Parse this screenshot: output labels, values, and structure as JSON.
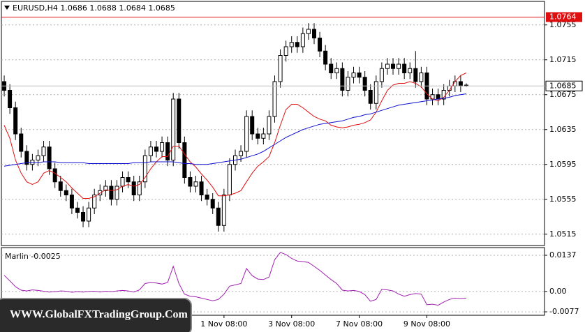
{
  "chart_data": [
    {
      "type": "candlestick",
      "title": "EURUSD,H4  1.0686 1.0688 1.0684 1.0685",
      "watermark": "WWW.GlobalFXTradingGroup.Com",
      "categories": [
        null,
        null,
        null,
        null,
        null,
        null,
        null,
        null,
        null,
        null,
        null,
        null,
        null,
        null,
        null,
        null,
        null,
        null,
        null,
        null,
        null,
        null,
        null,
        null,
        null,
        null,
        null,
        null,
        null,
        null,
        null,
        null,
        null,
        null,
        null,
        null,
        null,
        null,
        null,
        "1 Nov 08:00",
        null,
        null,
        null,
        null,
        null,
        null,
        null,
        null,
        null,
        null,
        null,
        "3 Nov 08:00",
        null,
        null,
        null,
        null,
        null,
        null,
        null,
        null,
        null,
        null,
        null,
        "7 Nov 08:00",
        null,
        null,
        null,
        null,
        null,
        null,
        null,
        null,
        null,
        null,
        null,
        "9 Nov 08:00",
        null,
        null,
        null,
        null,
        null,
        null,
        null
      ],
      "open": [
        1.069,
        1.068,
        1.066,
        1.063,
        1.061,
        1.0595,
        1.06,
        1.0605,
        1.0615,
        1.059,
        1.0575,
        1.0565,
        1.056,
        1.0545,
        1.054,
        1.053,
        1.0545,
        1.056,
        1.0565,
        1.057,
        1.0555,
        1.057,
        1.058,
        1.0575,
        1.056,
        1.0575,
        1.0605,
        1.0615,
        1.061,
        1.062,
        1.06,
        1.067,
        1.062,
        1.058,
        1.057,
        1.0575,
        1.056,
        1.0555,
        1.0545,
        1.0525,
        1.056,
        1.0595,
        1.0605,
        1.061,
        1.065,
        1.063,
        1.0625,
        1.063,
        1.065,
        1.069,
        1.072,
        1.073,
        1.0735,
        1.073,
        1.0745,
        1.075,
        1.074,
        1.0725,
        1.071,
        1.07,
        1.0705,
        1.068,
        1.0695,
        1.07,
        1.0695,
        1.068,
        1.0665,
        1.069,
        1.0705,
        1.071,
        1.0705,
        1.071,
        1.07,
        1.0705,
        1.069,
        1.07,
        1.067,
        1.0675,
        1.067,
        1.068,
        1.0685,
        1.069,
        1.0686
      ],
      "high": [
        1.0697,
        1.0687,
        1.0667,
        1.0637,
        1.0617,
        1.0607,
        1.0612,
        1.0622,
        1.0622,
        1.0597,
        1.0582,
        1.0572,
        1.0567,
        1.0552,
        1.0547,
        1.0552,
        1.0567,
        1.0572,
        1.0577,
        1.0577,
        1.0577,
        1.0587,
        1.0587,
        1.0582,
        1.0582,
        1.0612,
        1.0622,
        1.0622,
        1.0627,
        1.0627,
        1.0677,
        1.0677,
        1.0627,
        1.0587,
        1.0582,
        1.0582,
        1.0567,
        1.0562,
        1.0552,
        1.0567,
        1.0602,
        1.0612,
        1.0617,
        1.0657,
        1.0657,
        1.0637,
        1.0637,
        1.0657,
        1.0697,
        1.0727,
        1.0737,
        1.0742,
        1.0742,
        1.0752,
        1.0757,
        1.0757,
        1.0747,
        1.0732,
        1.0717,
        1.0712,
        1.0712,
        1.0702,
        1.0707,
        1.0707,
        1.0702,
        1.0687,
        1.0697,
        1.0712,
        1.0717,
        1.0717,
        1.0717,
        1.0717,
        1.0712,
        1.0725,
        1.0707,
        1.0707,
        1.0682,
        1.0682,
        1.0687,
        1.0692,
        1.0697,
        1.0697,
        1.0688
      ],
      "low": [
        1.0673,
        1.0653,
        1.0623,
        1.0603,
        1.0588,
        1.0588,
        1.0593,
        1.0598,
        1.0583,
        1.0568,
        1.0558,
        1.0553,
        1.0538,
        1.0533,
        1.0523,
        1.0523,
        1.0538,
        1.0553,
        1.0558,
        1.0548,
        1.0548,
        1.0563,
        1.0568,
        1.0553,
        1.0553,
        1.0568,
        1.0598,
        1.0603,
        1.0603,
        1.0593,
        1.0593,
        1.0613,
        1.0573,
        1.0563,
        1.0563,
        1.0553,
        1.0548,
        1.0538,
        1.0518,
        1.0518,
        1.0553,
        1.0588,
        1.0598,
        1.0603,
        1.0623,
        1.0618,
        1.0618,
        1.0623,
        1.0643,
        1.0683,
        1.0713,
        1.0723,
        1.0723,
        1.0723,
        1.0738,
        1.0733,
        1.0718,
        1.0703,
        1.0693,
        1.0693,
        1.0673,
        1.0673,
        1.0688,
        1.0688,
        1.0673,
        1.0658,
        1.0658,
        1.0683,
        1.0698,
        1.0698,
        1.0698,
        1.0693,
        1.0693,
        1.0683,
        1.0683,
        1.0663,
        1.0663,
        1.0663,
        1.0663,
        1.0673,
        1.0678,
        1.0678,
        1.0684
      ],
      "close": [
        1.068,
        1.066,
        1.063,
        1.061,
        1.0595,
        1.06,
        1.0605,
        1.0615,
        1.059,
        1.0575,
        1.0565,
        1.056,
        1.0545,
        1.054,
        1.053,
        1.0545,
        1.056,
        1.0565,
        1.057,
        1.0555,
        1.057,
        1.058,
        1.0575,
        1.056,
        1.0575,
        1.0605,
        1.0615,
        1.061,
        1.062,
        1.06,
        1.067,
        1.062,
        1.058,
        1.057,
        1.0575,
        1.056,
        1.0555,
        1.0545,
        1.0525,
        1.056,
        1.0595,
        1.0605,
        1.061,
        1.065,
        1.063,
        1.0625,
        1.063,
        1.065,
        1.069,
        1.072,
        1.073,
        1.0735,
        1.073,
        1.0745,
        1.075,
        1.074,
        1.0725,
        1.071,
        1.07,
        1.0705,
        1.068,
        1.0695,
        1.07,
        1.0695,
        1.068,
        1.0665,
        1.069,
        1.0705,
        1.071,
        1.0705,
        1.071,
        1.07,
        1.0705,
        1.069,
        1.07,
        1.067,
        1.0675,
        1.067,
        1.068,
        1.0685,
        1.069,
        1.0685,
        1.0685
      ],
      "up_color": "#ffffff",
      "down_color": "#000000",
      "series": [
        {
          "color": "#e01010",
          "values": [
            1.064,
            1.0625,
            1.06,
            1.0585,
            1.0575,
            1.0572,
            1.0575,
            1.0585,
            1.0588,
            1.0585,
            1.058,
            1.0575,
            1.0568,
            1.0562,
            1.0556,
            1.0556,
            1.0558,
            1.0562,
            1.0566,
            1.0565,
            1.0566,
            1.057,
            1.0572,
            1.057,
            1.0572,
            1.058,
            1.059,
            1.0598,
            1.0604,
            1.0604,
            1.0616,
            1.0616,
            1.0607,
            1.0598,
            1.0592,
            1.0584,
            1.0577,
            1.0569,
            1.0559,
            1.0559,
            1.056,
            1.0562,
            1.0565,
            1.0575,
            1.0585,
            1.0593,
            1.0598,
            1.0604,
            1.062,
            1.064,
            1.0658,
            1.0664,
            1.0664,
            1.066,
            1.0655,
            1.065,
            1.0647,
            1.0645,
            1.064,
            1.0638,
            1.0637,
            1.0638,
            1.064,
            1.0641,
            1.0643,
            1.0646,
            1.0655,
            1.0668,
            1.068,
            1.0686,
            1.0688,
            1.0688,
            1.069,
            1.0688,
            1.0684,
            1.0676,
            1.067,
            1.0668,
            1.0672,
            1.068,
            1.069,
            1.0697,
            1.07
          ]
        },
        {
          "color": "#1010d0",
          "values": [
            1.0593,
            1.0594,
            1.0595,
            1.0596,
            1.0597,
            1.0597,
            1.0597,
            1.0598,
            1.0598,
            1.0598,
            1.0597,
            1.0597,
            1.0597,
            1.0597,
            1.0597,
            1.0596,
            1.0596,
            1.0596,
            1.0596,
            1.0596,
            1.0596,
            1.0596,
            1.0596,
            1.0597,
            1.0597,
            1.0597,
            1.0598,
            1.0598,
            1.0598,
            1.0598,
            1.0598,
            1.0597,
            1.0596,
            1.0596,
            1.0595,
            1.0595,
            1.0595,
            1.0596,
            1.0597,
            1.0598,
            1.0599,
            1.06,
            1.0601,
            1.0603,
            1.0605,
            1.0607,
            1.061,
            1.0614,
            1.0618,
            1.0622,
            1.0626,
            1.0629,
            1.0632,
            1.0635,
            1.0637,
            1.0639,
            1.0641,
            1.0642,
            1.0643,
            1.0644,
            1.0645,
            1.0647,
            1.0649,
            1.065,
            1.0652,
            1.0653,
            1.0655,
            1.0657,
            1.0659,
            1.0661,
            1.0663,
            1.0664,
            1.0665,
            1.0666,
            1.0667,
            1.0668,
            1.0669,
            1.067,
            1.0671,
            1.0672,
            1.0674,
            1.0675,
            1.0676
          ]
        }
      ],
      "level": 1.0764,
      "level_color": "#e01010",
      "last_price": 1.0685,
      "ylim": [
        1.0502,
        1.0782
      ],
      "yticks": [
        1.0755,
        1.0715,
        1.0675,
        1.0635,
        1.0595,
        1.0555,
        1.0515
      ],
      "grid": true
    },
    {
      "type": "line",
      "title": "Marlin -0.0025",
      "color": "#a020b0",
      "values": [
        0.0061,
        0.004,
        0.0018,
        0.0005,
        0.0002,
        0.0006,
        0.0004,
        0.0001,
        -0.0002,
        -0.0001,
        0.0002,
        0.0001,
        -0.0003,
        -0.0001,
        -0.0002,
        0.0,
        0.0001,
        -0.0002,
        0.0001,
        -0.0001,
        0.0002,
        0.0004,
        0.0002,
        -0.0002,
        0.0006,
        0.003,
        0.0034,
        0.0032,
        0.0028,
        0.0034,
        0.0095,
        0.003,
        -0.001,
        -0.0018,
        -0.002,
        -0.0025,
        -0.003,
        -0.0035,
        -0.003,
        -0.001,
        0.002,
        0.0025,
        0.003,
        0.0087,
        0.006,
        0.0047,
        0.0045,
        0.0055,
        0.012,
        0.0148,
        0.014,
        0.0125,
        0.0115,
        0.0113,
        0.011,
        0.0095,
        0.008,
        0.0062,
        0.0045,
        0.003,
        0.0005,
        0.0002,
        0.0004,
        0.0,
        -0.0012,
        -0.0037,
        -0.003,
        0.0008,
        0.0006,
        0.0002,
        -0.001,
        -0.0018,
        -0.0012,
        -0.0008,
        -0.001,
        -0.005,
        -0.0048,
        -0.0052,
        -0.004,
        -0.003,
        -0.0025,
        -0.0027,
        -0.0025
      ],
      "ylim": [
        -0.009,
        0.0166
      ],
      "yticks": [
        0.0137,
        {
          "value": 0,
          "label": "0.00"
        },
        -0.0077
      ],
      "grid": true
    }
  ]
}
